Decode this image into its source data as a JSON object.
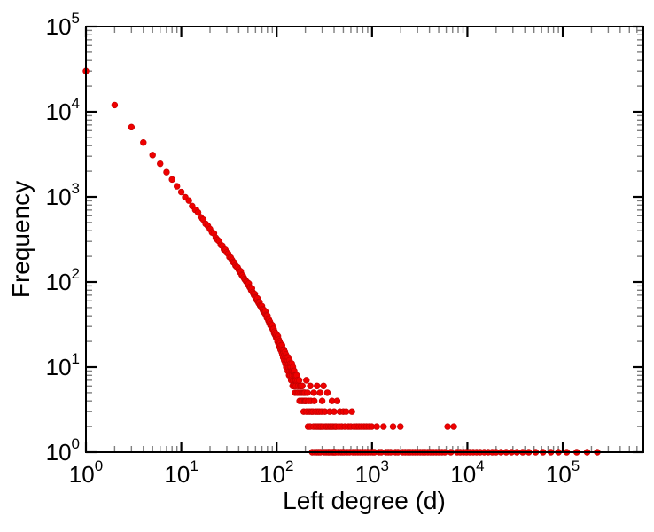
{
  "figure": {
    "background": "#ffffff",
    "frame_color": "#000000",
    "major_tick_color": "#000000",
    "minor_tick_color": "#7f7f7f",
    "label_color": "#000000"
  },
  "chart_data": {
    "type": "scatter",
    "title": "",
    "xlabel": "Left degree (d)",
    "ylabel": "Frequency",
    "xscale": "log",
    "yscale": "log",
    "xlim": [
      1,
      700000
    ],
    "ylim": [
      1,
      100000
    ],
    "grid": false,
    "legend": "none",
    "tick_base": "10",
    "x_tick_exponents": [
      0,
      1,
      2,
      3,
      4,
      5
    ],
    "y_tick_exponents": [
      0,
      1,
      2,
      3,
      4,
      5
    ],
    "marker": {
      "shape": "circle",
      "fill": "#ee0000",
      "stroke": "#c00000",
      "radius": 3.4
    },
    "series": [
      {
        "name": "frequency",
        "points": [
          [
            1,
            30000
          ],
          [
            2,
            12000
          ],
          [
            3,
            6600
          ],
          [
            4,
            4350
          ],
          [
            5,
            3100
          ],
          [
            6,
            2450
          ],
          [
            7,
            1950
          ],
          [
            8,
            1600
          ],
          [
            9,
            1330
          ],
          [
            10,
            1140
          ],
          [
            11,
            990
          ],
          [
            12,
            905
          ],
          [
            13,
            780
          ],
          [
            14,
            705
          ],
          [
            15,
            655
          ],
          [
            16,
            575
          ],
          [
            17,
            540
          ],
          [
            18,
            482
          ],
          [
            19,
            455
          ],
          [
            20,
            418
          ],
          [
            21,
            382
          ],
          [
            22,
            372
          ],
          [
            23,
            330
          ],
          [
            24,
            312
          ],
          [
            25,
            300
          ],
          [
            26,
            272
          ],
          [
            27,
            265
          ],
          [
            28,
            241
          ],
          [
            29,
            238
          ],
          [
            30,
            221
          ],
          [
            31,
            214
          ],
          [
            32,
            196
          ],
          [
            33,
            193
          ],
          [
            34,
            181
          ],
          [
            35,
            171
          ],
          [
            36,
            168
          ],
          [
            37,
            156
          ],
          [
            38,
            151
          ],
          [
            39,
            148
          ],
          [
            40,
            139
          ],
          [
            41,
            131
          ],
          [
            42,
            133
          ],
          [
            43,
            121
          ],
          [
            44,
            119
          ],
          [
            45,
            113
          ],
          [
            46,
            108
          ],
          [
            47,
            105
          ],
          [
            48,
            101
          ],
          [
            49,
            99
          ],
          [
            50,
            93
          ],
          [
            51,
            96
          ],
          [
            52,
            87
          ],
          [
            53,
            85
          ],
          [
            54,
            80
          ],
          [
            55,
            84
          ],
          [
            56,
            76
          ],
          [
            57,
            73
          ],
          [
            58,
            70
          ],
          [
            59,
            72
          ],
          [
            60,
            66
          ],
          [
            61,
            65
          ],
          [
            62,
            61
          ],
          [
            63,
            64
          ],
          [
            64,
            58
          ],
          [
            65,
            56
          ],
          [
            66,
            58
          ],
          [
            67,
            53
          ],
          [
            68,
            52
          ],
          [
            69,
            50
          ],
          [
            70,
            52
          ],
          [
            71,
            48
          ],
          [
            72,
            46
          ],
          [
            73,
            47
          ],
          [
            74,
            44
          ],
          [
            75,
            43
          ],
          [
            76,
            45
          ],
          [
            77,
            41
          ],
          [
            78,
            40
          ],
          [
            79,
            38
          ],
          [
            80,
            40
          ],
          [
            81,
            37
          ],
          [
            82,
            35
          ],
          [
            83,
            36
          ],
          [
            84,
            33
          ],
          [
            85,
            34
          ],
          [
            86,
            31
          ],
          [
            87,
            32
          ],
          [
            88,
            30
          ],
          [
            89,
            29
          ],
          [
            90,
            31
          ],
          [
            91,
            28
          ],
          [
            92,
            27
          ],
          [
            93,
            28
          ],
          [
            94,
            25
          ],
          [
            95,
            26
          ],
          [
            96,
            24
          ],
          [
            97,
            25
          ],
          [
            98,
            23
          ],
          [
            99,
            22
          ],
          [
            100,
            24
          ],
          [
            101,
            22
          ],
          [
            102,
            20
          ],
          [
            103,
            23
          ],
          [
            104,
            19
          ],
          [
            105,
            21
          ],
          [
            106,
            18
          ],
          [
            107,
            20
          ],
          [
            108,
            17
          ],
          [
            109,
            19
          ],
          [
            110,
            16
          ],
          [
            111,
            18
          ],
          [
            112,
            17
          ],
          [
            113,
            15
          ],
          [
            114,
            18
          ],
          [
            115,
            14
          ],
          [
            116,
            16
          ],
          [
            117,
            13
          ],
          [
            118,
            15
          ],
          [
            119,
            16
          ],
          [
            120,
            12
          ],
          [
            121,
            14
          ],
          [
            122,
            15
          ],
          [
            123,
            11
          ],
          [
            124,
            13
          ],
          [
            125,
            14
          ],
          [
            126,
            10
          ],
          [
            127,
            12
          ],
          [
            128,
            13
          ],
          [
            129,
            11
          ],
          [
            130,
            12
          ],
          [
            131,
            9
          ],
          [
            132,
            13
          ],
          [
            133,
            10
          ],
          [
            134,
            11
          ],
          [
            135,
            8
          ],
          [
            136,
            12
          ],
          [
            137,
            9
          ],
          [
            138,
            10
          ],
          [
            139,
            11
          ],
          [
            140,
            8
          ],
          [
            141,
            10
          ],
          [
            142,
            7
          ],
          [
            143,
            9
          ],
          [
            144,
            11
          ],
          [
            145,
            8
          ],
          [
            146,
            9
          ],
          [
            147,
            6
          ],
          [
            148,
            10
          ],
          [
            149,
            7
          ],
          [
            150,
            9
          ],
          [
            151,
            8
          ],
          [
            152,
            6
          ],
          [
            153,
            9
          ],
          [
            154,
            7
          ],
          [
            155,
            8
          ],
          [
            156,
            5
          ],
          [
            157,
            7
          ],
          [
            158,
            8
          ],
          [
            159,
            6
          ],
          [
            160,
            7
          ],
          [
            162,
            8
          ],
          [
            164,
            5
          ],
          [
            166,
            7
          ],
          [
            168,
            6
          ],
          [
            170,
            5
          ],
          [
            172,
            7
          ],
          [
            174,
            4
          ],
          [
            176,
            6
          ],
          [
            178,
            5
          ],
          [
            180,
            6
          ],
          [
            182,
            4
          ],
          [
            184,
            5
          ],
          [
            186,
            6
          ],
          [
            188,
            4
          ],
          [
            190,
            5
          ],
          [
            192,
            3
          ],
          [
            194,
            5
          ],
          [
            196,
            4
          ],
          [
            198,
            5
          ],
          [
            200,
            4
          ],
          [
            203,
            4
          ],
          [
            205,
            7
          ],
          [
            206,
            3
          ],
          [
            210,
            5
          ],
          [
            213,
            2
          ],
          [
            216,
            4
          ],
          [
            220,
            3
          ],
          [
            224,
            2
          ],
          [
            225,
            6
          ],
          [
            228,
            4
          ],
          [
            232,
            3
          ],
          [
            236,
            1
          ],
          [
            240,
            3
          ],
          [
            244,
            2
          ],
          [
            245,
            5
          ],
          [
            248,
            4
          ],
          [
            252,
            1
          ],
          [
            256,
            3
          ],
          [
            260,
            2
          ],
          [
            264,
            1
          ],
          [
            265,
            6
          ],
          [
            268,
            3
          ],
          [
            272,
            2
          ],
          [
            276,
            1
          ],
          [
            280,
            3
          ],
          [
            284,
            2
          ],
          [
            285,
            5
          ],
          [
            288,
            1
          ],
          [
            292,
            2
          ],
          [
            296,
            3
          ],
          [
            300,
            4
          ],
          [
            305,
            2
          ],
          [
            310,
            6
          ],
          [
            315,
            1
          ],
          [
            320,
            3
          ],
          [
            325,
            2
          ],
          [
            330,
            1
          ],
          [
            335,
            2
          ],
          [
            340,
            5
          ],
          [
            345,
            1
          ],
          [
            350,
            2
          ],
          [
            355,
            1
          ],
          [
            360,
            3
          ],
          [
            365,
            2
          ],
          [
            370,
            1
          ],
          [
            375,
            2
          ],
          [
            380,
            4
          ],
          [
            385,
            1
          ],
          [
            390,
            2
          ],
          [
            395,
            1
          ],
          [
            400,
            3
          ],
          [
            405,
            1
          ],
          [
            410,
            2
          ],
          [
            415,
            1
          ],
          [
            420,
            2
          ],
          [
            430,
            4
          ],
          [
            440,
            1
          ],
          [
            450,
            2
          ],
          [
            460,
            3
          ],
          [
            470,
            1
          ],
          [
            480,
            2
          ],
          [
            490,
            1
          ],
          [
            500,
            3
          ],
          [
            510,
            1
          ],
          [
            520,
            2
          ],
          [
            535,
            3
          ],
          [
            550,
            1
          ],
          [
            565,
            2
          ],
          [
            580,
            1
          ],
          [
            600,
            2
          ],
          [
            615,
            3
          ],
          [
            630,
            1
          ],
          [
            650,
            2
          ],
          [
            670,
            1
          ],
          [
            690,
            2
          ],
          [
            710,
            1
          ],
          [
            730,
            2
          ],
          [
            750,
            1
          ],
          [
            775,
            2
          ],
          [
            800,
            1
          ],
          [
            825,
            2
          ],
          [
            850,
            1
          ],
          [
            875,
            2
          ],
          [
            900,
            1
          ],
          [
            930,
            2
          ],
          [
            960,
            1
          ],
          [
            990,
            2
          ],
          [
            1020,
            1
          ],
          [
            1060,
            1
          ],
          [
            1120,
            2
          ],
          [
            1180,
            1
          ],
          [
            1250,
            1
          ],
          [
            1320,
            2
          ],
          [
            1400,
            1
          ],
          [
            1480,
            1
          ],
          [
            1570,
            1
          ],
          [
            1660,
            2
          ],
          [
            1760,
            1
          ],
          [
            1870,
            1
          ],
          [
            1980,
            2
          ],
          [
            2100,
            1
          ],
          [
            2230,
            1
          ],
          [
            2370,
            1
          ],
          [
            2510,
            1
          ],
          [
            2670,
            1
          ],
          [
            2830,
            1
          ],
          [
            3000,
            1
          ],
          [
            3200,
            1
          ],
          [
            3400,
            1
          ],
          [
            3600,
            1
          ],
          [
            3850,
            1
          ],
          [
            4100,
            1
          ],
          [
            4400,
            1
          ],
          [
            4700,
            1
          ],
          [
            5000,
            1
          ],
          [
            5400,
            1
          ],
          [
            5800,
            1
          ],
          [
            6200,
            2
          ],
          [
            6700,
            1
          ],
          [
            7200,
            2
          ],
          [
            7800,
            1
          ],
          [
            8400,
            1
          ],
          [
            9100,
            1
          ],
          [
            9800,
            1
          ],
          [
            10600,
            1
          ],
          [
            11500,
            1
          ],
          [
            12500,
            1
          ],
          [
            13600,
            1
          ],
          [
            15000,
            1
          ],
          [
            16500,
            1
          ],
          [
            18200,
            1
          ],
          [
            20000,
            1
          ],
          [
            22500,
            1
          ],
          [
            25500,
            1
          ],
          [
            29000,
            1
          ],
          [
            33000,
            1
          ],
          [
            38000,
            1
          ],
          [
            44000,
            1
          ],
          [
            52000,
            1
          ],
          [
            62000,
            1
          ],
          [
            75000,
            1
          ],
          [
            90000,
            1
          ],
          [
            110000,
            1
          ],
          [
            140000,
            1
          ],
          [
            180000,
            1
          ],
          [
            230000,
            1
          ]
        ]
      }
    ]
  }
}
